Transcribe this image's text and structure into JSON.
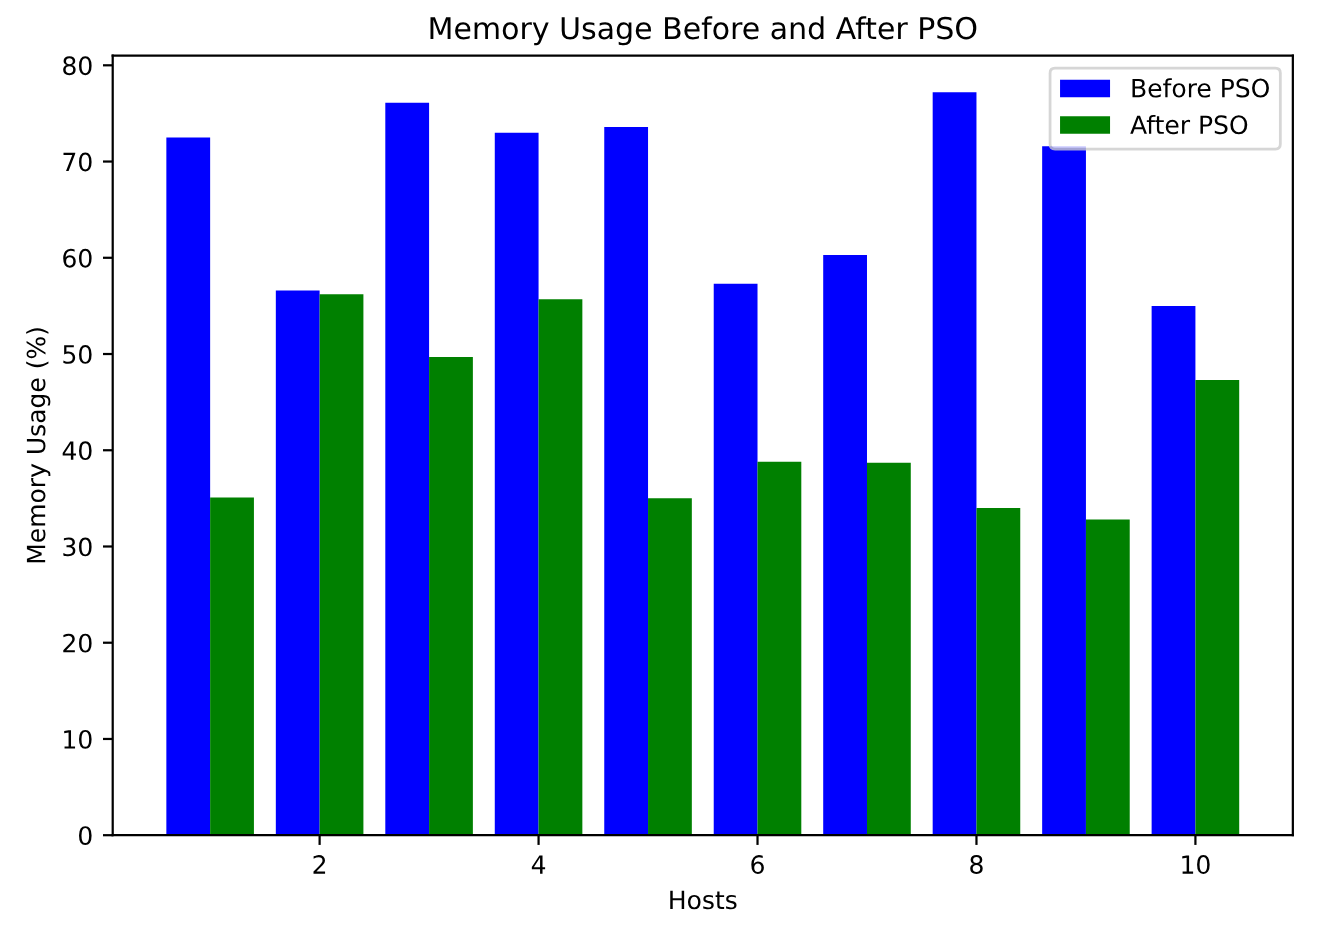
{
  "chart_data": {
    "type": "bar",
    "title": "Memory Usage Before and After PSO",
    "xlabel": "Hosts",
    "ylabel": "Memory Usage (%)",
    "x": [
      1,
      2,
      3,
      4,
      5,
      6,
      7,
      8,
      9,
      10
    ],
    "series": [
      {
        "name": "Before PSO",
        "color": "#0000ff",
        "values": [
          72.5,
          56.6,
          76.1,
          73.0,
          73.6,
          57.3,
          60.3,
          77.2,
          71.6,
          55.0
        ]
      },
      {
        "name": "After PSO",
        "color": "#008000",
        "values": [
          35.1,
          56.2,
          49.7,
          55.7,
          35.0,
          38.8,
          38.7,
          34.0,
          32.8,
          47.3
        ]
      }
    ],
    "xlim": [
      0.11,
      10.89
    ],
    "xticks": [
      2,
      4,
      6,
      8,
      10
    ],
    "ylim": [
      0,
      81
    ],
    "yticks": [
      0,
      10,
      20,
      30,
      40,
      50,
      60,
      70,
      80
    ],
    "legend": "top right",
    "grid": false
  }
}
